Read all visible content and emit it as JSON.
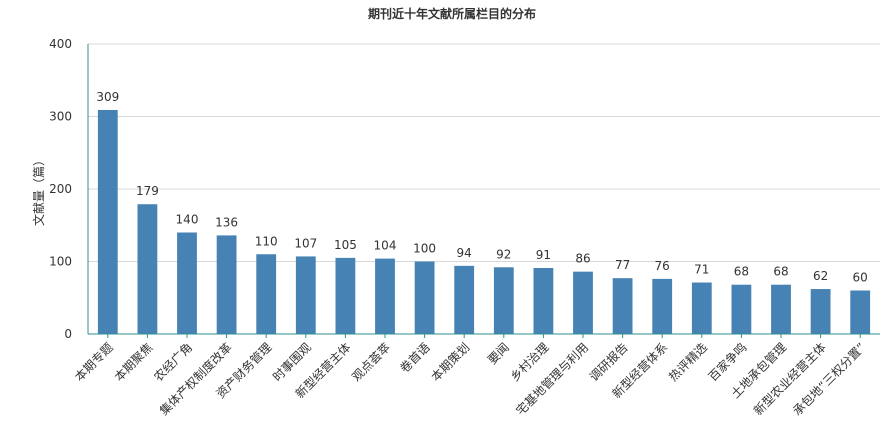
{
  "chart_data": {
    "type": "bar",
    "title": "期刊近十年文献所属栏目的分布",
    "xlabel": "",
    "ylabel": "文献量（篇）",
    "ylim": [
      0,
      400
    ],
    "yticks": [
      0,
      100,
      200,
      300,
      400
    ],
    "grid": true,
    "legend": "none",
    "colors": {
      "bar": "#4682b4",
      "axis": "#2f8f8f",
      "grid": "#d8d8d8"
    },
    "categories": [
      "本期专题",
      "本期聚焦",
      "农经广角",
      "集体产权制度改革",
      "资产财务管理",
      "时事围观",
      "新型经营主体",
      "观点荟萃",
      "卷首语",
      "本期策划",
      "要闻",
      "乡村治理",
      "宅基地管理与利用",
      "调研报告",
      "新型经营体系",
      "热评精选",
      "百家争鸣",
      "土地承包管理",
      "新型农业经营主体",
      "承包地“三权分置”"
    ],
    "values": [
      309,
      179,
      140,
      136,
      110,
      107,
      105,
      104,
      100,
      94,
      92,
      91,
      86,
      77,
      76,
      71,
      68,
      68,
      62,
      60
    ]
  }
}
